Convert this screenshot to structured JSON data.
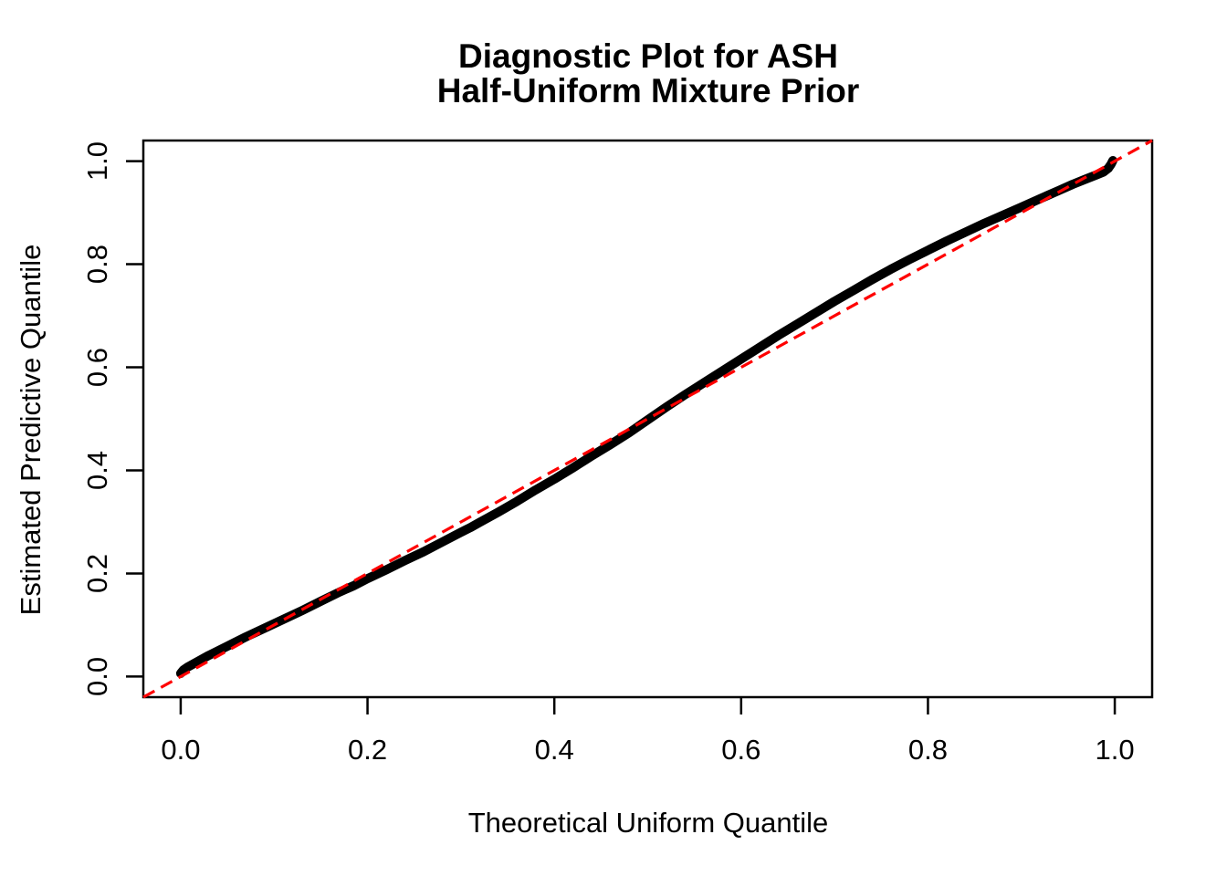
{
  "chart_data": {
    "type": "scatter",
    "title_line1": "Diagnostic Plot for ASH",
    "title_line2": "Half-Uniform Mixture Prior",
    "xlabel": "Theoretical Uniform Quantile",
    "ylabel": "Estimated Predictive Quantile",
    "xlim": [
      -0.04,
      1.04
    ],
    "ylim": [
      -0.04,
      1.04
    ],
    "x_ticks": [
      0.0,
      0.2,
      0.4,
      0.6,
      0.8,
      1.0
    ],
    "y_ticks": [
      0.0,
      0.2,
      0.4,
      0.6,
      0.8,
      1.0
    ],
    "x_tick_labels": [
      "0.0",
      "0.2",
      "0.4",
      "0.6",
      "0.8",
      "1.0"
    ],
    "y_tick_labels": [
      "0.0",
      "0.2",
      "0.4",
      "0.6",
      "0.8",
      "1.0"
    ],
    "grid": false,
    "legend_position": "none",
    "colors": {
      "curve": "#000000",
      "reference_line": "#FF0000",
      "axis": "#000000",
      "background": "#FFFFFF"
    },
    "series": [
      {
        "name": "estimated-predictive-quantiles",
        "type": "line",
        "color": "#000000",
        "style": "solid",
        "points": [
          [
            0.0,
            0.006
          ],
          [
            0.003,
            0.013
          ],
          [
            0.008,
            0.019
          ],
          [
            0.015,
            0.026
          ],
          [
            0.03,
            0.041
          ],
          [
            0.05,
            0.059
          ],
          [
            0.07,
            0.077
          ],
          [
            0.09,
            0.094
          ],
          [
            0.11,
            0.111
          ],
          [
            0.13,
            0.128
          ],
          [
            0.15,
            0.146
          ],
          [
            0.17,
            0.164
          ],
          [
            0.185,
            0.176
          ],
          [
            0.2,
            0.19
          ],
          [
            0.22,
            0.207
          ],
          [
            0.24,
            0.225
          ],
          [
            0.26,
            0.242
          ],
          [
            0.28,
            0.261
          ],
          [
            0.3,
            0.28
          ],
          [
            0.31,
            0.289
          ],
          [
            0.32,
            0.299
          ],
          [
            0.34,
            0.319
          ],
          [
            0.36,
            0.34
          ],
          [
            0.38,
            0.362
          ],
          [
            0.4,
            0.383
          ],
          [
            0.42,
            0.405
          ],
          [
            0.44,
            0.428
          ],
          [
            0.46,
            0.45
          ],
          [
            0.48,
            0.473
          ],
          [
            0.5,
            0.498
          ],
          [
            0.52,
            0.523
          ],
          [
            0.54,
            0.547
          ],
          [
            0.56,
            0.57
          ],
          [
            0.58,
            0.593
          ],
          [
            0.6,
            0.616
          ],
          [
            0.62,
            0.639
          ],
          [
            0.64,
            0.662
          ],
          [
            0.66,
            0.684
          ],
          [
            0.68,
            0.706
          ],
          [
            0.7,
            0.728
          ],
          [
            0.72,
            0.749
          ],
          [
            0.74,
            0.77
          ],
          [
            0.76,
            0.79
          ],
          [
            0.78,
            0.809
          ],
          [
            0.8,
            0.827
          ],
          [
            0.82,
            0.845
          ],
          [
            0.84,
            0.862
          ],
          [
            0.86,
            0.879
          ],
          [
            0.88,
            0.895
          ],
          [
            0.9,
            0.911
          ],
          [
            0.92,
            0.927
          ],
          [
            0.94,
            0.943
          ],
          [
            0.955,
            0.955
          ],
          [
            0.97,
            0.966
          ],
          [
            0.98,
            0.973
          ],
          [
            0.988,
            0.979
          ],
          [
            0.993,
            0.986
          ],
          [
            0.996,
            0.994
          ],
          [
            0.998,
            1.001
          ]
        ]
      },
      {
        "name": "reference-diagonal",
        "type": "line",
        "color": "#FF0000",
        "style": "dashed",
        "points": [
          [
            -0.04,
            -0.04
          ],
          [
            1.04,
            1.04
          ]
        ]
      }
    ]
  }
}
